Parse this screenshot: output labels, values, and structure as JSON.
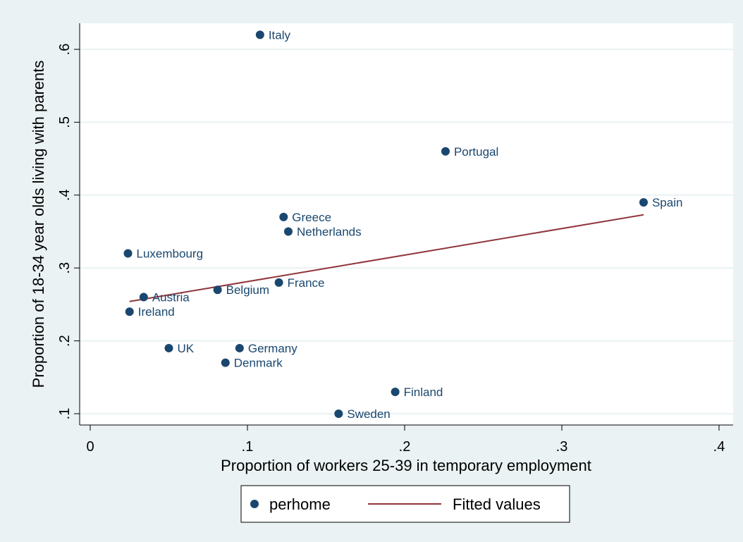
{
  "chart_data": {
    "type": "scatter",
    "xlabel": "Proportion of workers 25-39 in temporary employment",
    "ylabel": "Proportion of 18-34 year olds living with parents",
    "xlim": [
      0,
      0.4
    ],
    "ylim": [
      0.1,
      0.62
    ],
    "xticks": [
      0,
      0.1,
      0.2,
      0.3,
      0.4
    ],
    "xtick_labels": [
      "0",
      ".1",
      ".2",
      ".3",
      ".4"
    ],
    "yticks": [
      0.1,
      0.2,
      0.3,
      0.4,
      0.5,
      0.6
    ],
    "ytick_labels": [
      ".1",
      ".2",
      ".3",
      ".4",
      ".5",
      ".6"
    ],
    "grid": "horizontal",
    "legend_position": "bottom",
    "colors": {
      "points": "#1a476f",
      "fit_line": "#90353b",
      "plot_bg": "#ffffff",
      "page_bg": "#eaf2f3"
    },
    "series": [
      {
        "name": "perhome",
        "kind": "scatter",
        "points": [
          {
            "label": "Italy",
            "x": 0.108,
            "y": 0.62
          },
          {
            "label": "Portugal",
            "x": 0.226,
            "y": 0.46
          },
          {
            "label": "Spain",
            "x": 0.352,
            "y": 0.39
          },
          {
            "label": "Greece",
            "x": 0.123,
            "y": 0.37
          },
          {
            "label": "Netherlands",
            "x": 0.126,
            "y": 0.35
          },
          {
            "label": "Luxembourg",
            "x": 0.024,
            "y": 0.32
          },
          {
            "label": "France",
            "x": 0.12,
            "y": 0.28
          },
          {
            "label": "Belgium",
            "x": 0.081,
            "y": 0.27
          },
          {
            "label": "Austria",
            "x": 0.034,
            "y": 0.26
          },
          {
            "label": "Ireland",
            "x": 0.025,
            "y": 0.24
          },
          {
            "label": "UK",
            "x": 0.05,
            "y": 0.19
          },
          {
            "label": "Germany",
            "x": 0.095,
            "y": 0.19
          },
          {
            "label": "Denmark",
            "x": 0.086,
            "y": 0.17
          },
          {
            "label": "Finland",
            "x": 0.194,
            "y": 0.13
          },
          {
            "label": "Sweden",
            "x": 0.158,
            "y": 0.1
          }
        ]
      },
      {
        "name": "Fitted values",
        "kind": "line",
        "points": [
          {
            "x": 0.025,
            "y": 0.254
          },
          {
            "x": 0.352,
            "y": 0.373
          }
        ]
      }
    ]
  }
}
